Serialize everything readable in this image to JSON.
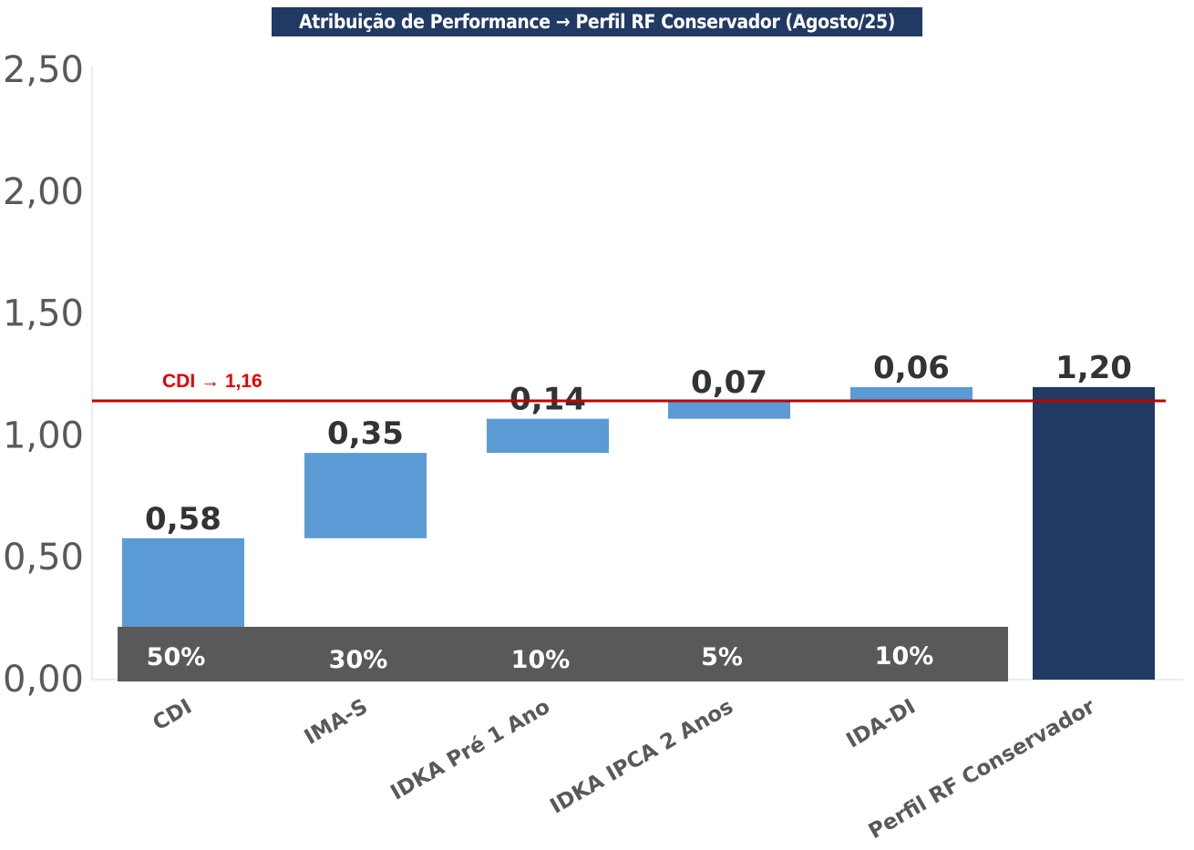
{
  "chart_data": {
    "type": "bar",
    "subtype": "waterfall",
    "title": "Atribuição de Performance → Perfil RF Conservador (Agosto/25)",
    "categories": [
      "CDI",
      "IMA-S",
      "IDKA Pré 1 Ano",
      "IDKA IPCA 2 Anos",
      "IDA-DI",
      "Perfil RF Conservador"
    ],
    "values": [
      0.58,
      0.35,
      0.14,
      0.07,
      0.06,
      1.2
    ],
    "value_labels": [
      "0,58",
      "0,35",
      "0,14",
      "0,07",
      "0,06",
      "1,20"
    ],
    "bar_kinds": [
      "step",
      "step",
      "step",
      "step",
      "step",
      "total"
    ],
    "weights": [
      "50%",
      "30%",
      "10%",
      "5%",
      "10%"
    ],
    "ylim": [
      0,
      2.5
    ],
    "yticks": [
      0,
      0.5,
      1.0,
      1.5,
      2.0,
      2.5
    ],
    "ytick_labels": [
      "0,00",
      "0,50",
      "1,00",
      "1,50",
      "2,00",
      "2,50"
    ],
    "reference_line": {
      "label": "CDI → 1,16",
      "value": 1.16,
      "color": "#c00000"
    },
    "colors": {
      "step": "#5b9bd5",
      "total": "#213a63",
      "weights_band": "#595959"
    },
    "xlabel": "",
    "ylabel": "",
    "grid": false,
    "legend": "none"
  }
}
